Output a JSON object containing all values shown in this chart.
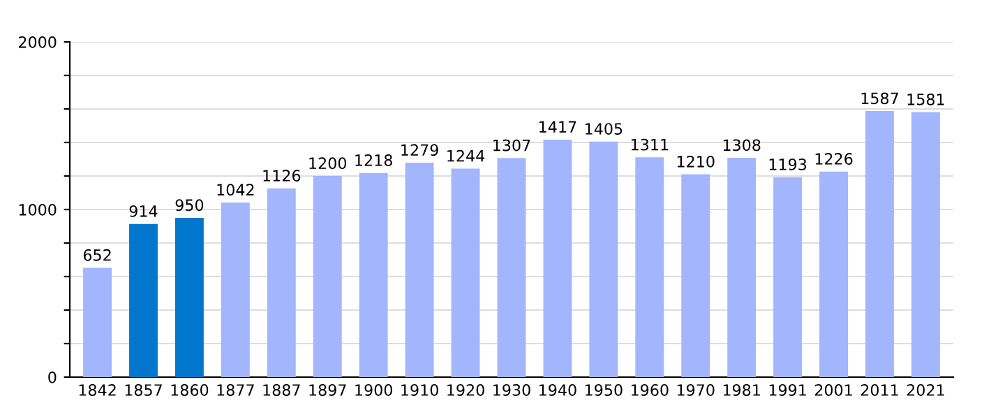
{
  "chart_data": {
    "type": "bar",
    "categories": [
      "1842",
      "1857",
      "1860",
      "1877",
      "1887",
      "1897",
      "1900",
      "1910",
      "1920",
      "1930",
      "1940",
      "1950",
      "1960",
      "1970",
      "1981",
      "1991",
      "2001",
      "2011",
      "2021"
    ],
    "values": [
      652,
      914,
      950,
      1042,
      1126,
      1200,
      1218,
      1279,
      1244,
      1307,
      1417,
      1405,
      1311,
      1210,
      1308,
      1193,
      1226,
      1587,
      1581
    ],
    "colors": [
      "#a3b5fc",
      "#0077cc",
      "#0077cc",
      "#a3b5fc",
      "#a3b5fc",
      "#a3b5fc",
      "#a3b5fc",
      "#a3b5fc",
      "#a3b5fc",
      "#a3b5fc",
      "#a3b5fc",
      "#a3b5fc",
      "#a3b5fc",
      "#a3b5fc",
      "#a3b5fc",
      "#a3b5fc",
      "#a3b5fc",
      "#a3b5fc",
      "#a3b5fc"
    ],
    "ylim": [
      0,
      2000
    ],
    "yticks": [
      0,
      {
        "value": 200,
        "label": null
      },
      {
        "value": 400,
        "label": null
      },
      {
        "value": 600,
        "label": null
      },
      {
        "value": 800,
        "label": null
      },
      1000,
      {
        "value": 1200,
        "label": null
      },
      {
        "value": 1400,
        "label": null
      },
      {
        "value": 1600,
        "label": null
      },
      {
        "value": 1800,
        "label": null
      },
      2000
    ],
    "grid": "y",
    "data_labels": true
  }
}
